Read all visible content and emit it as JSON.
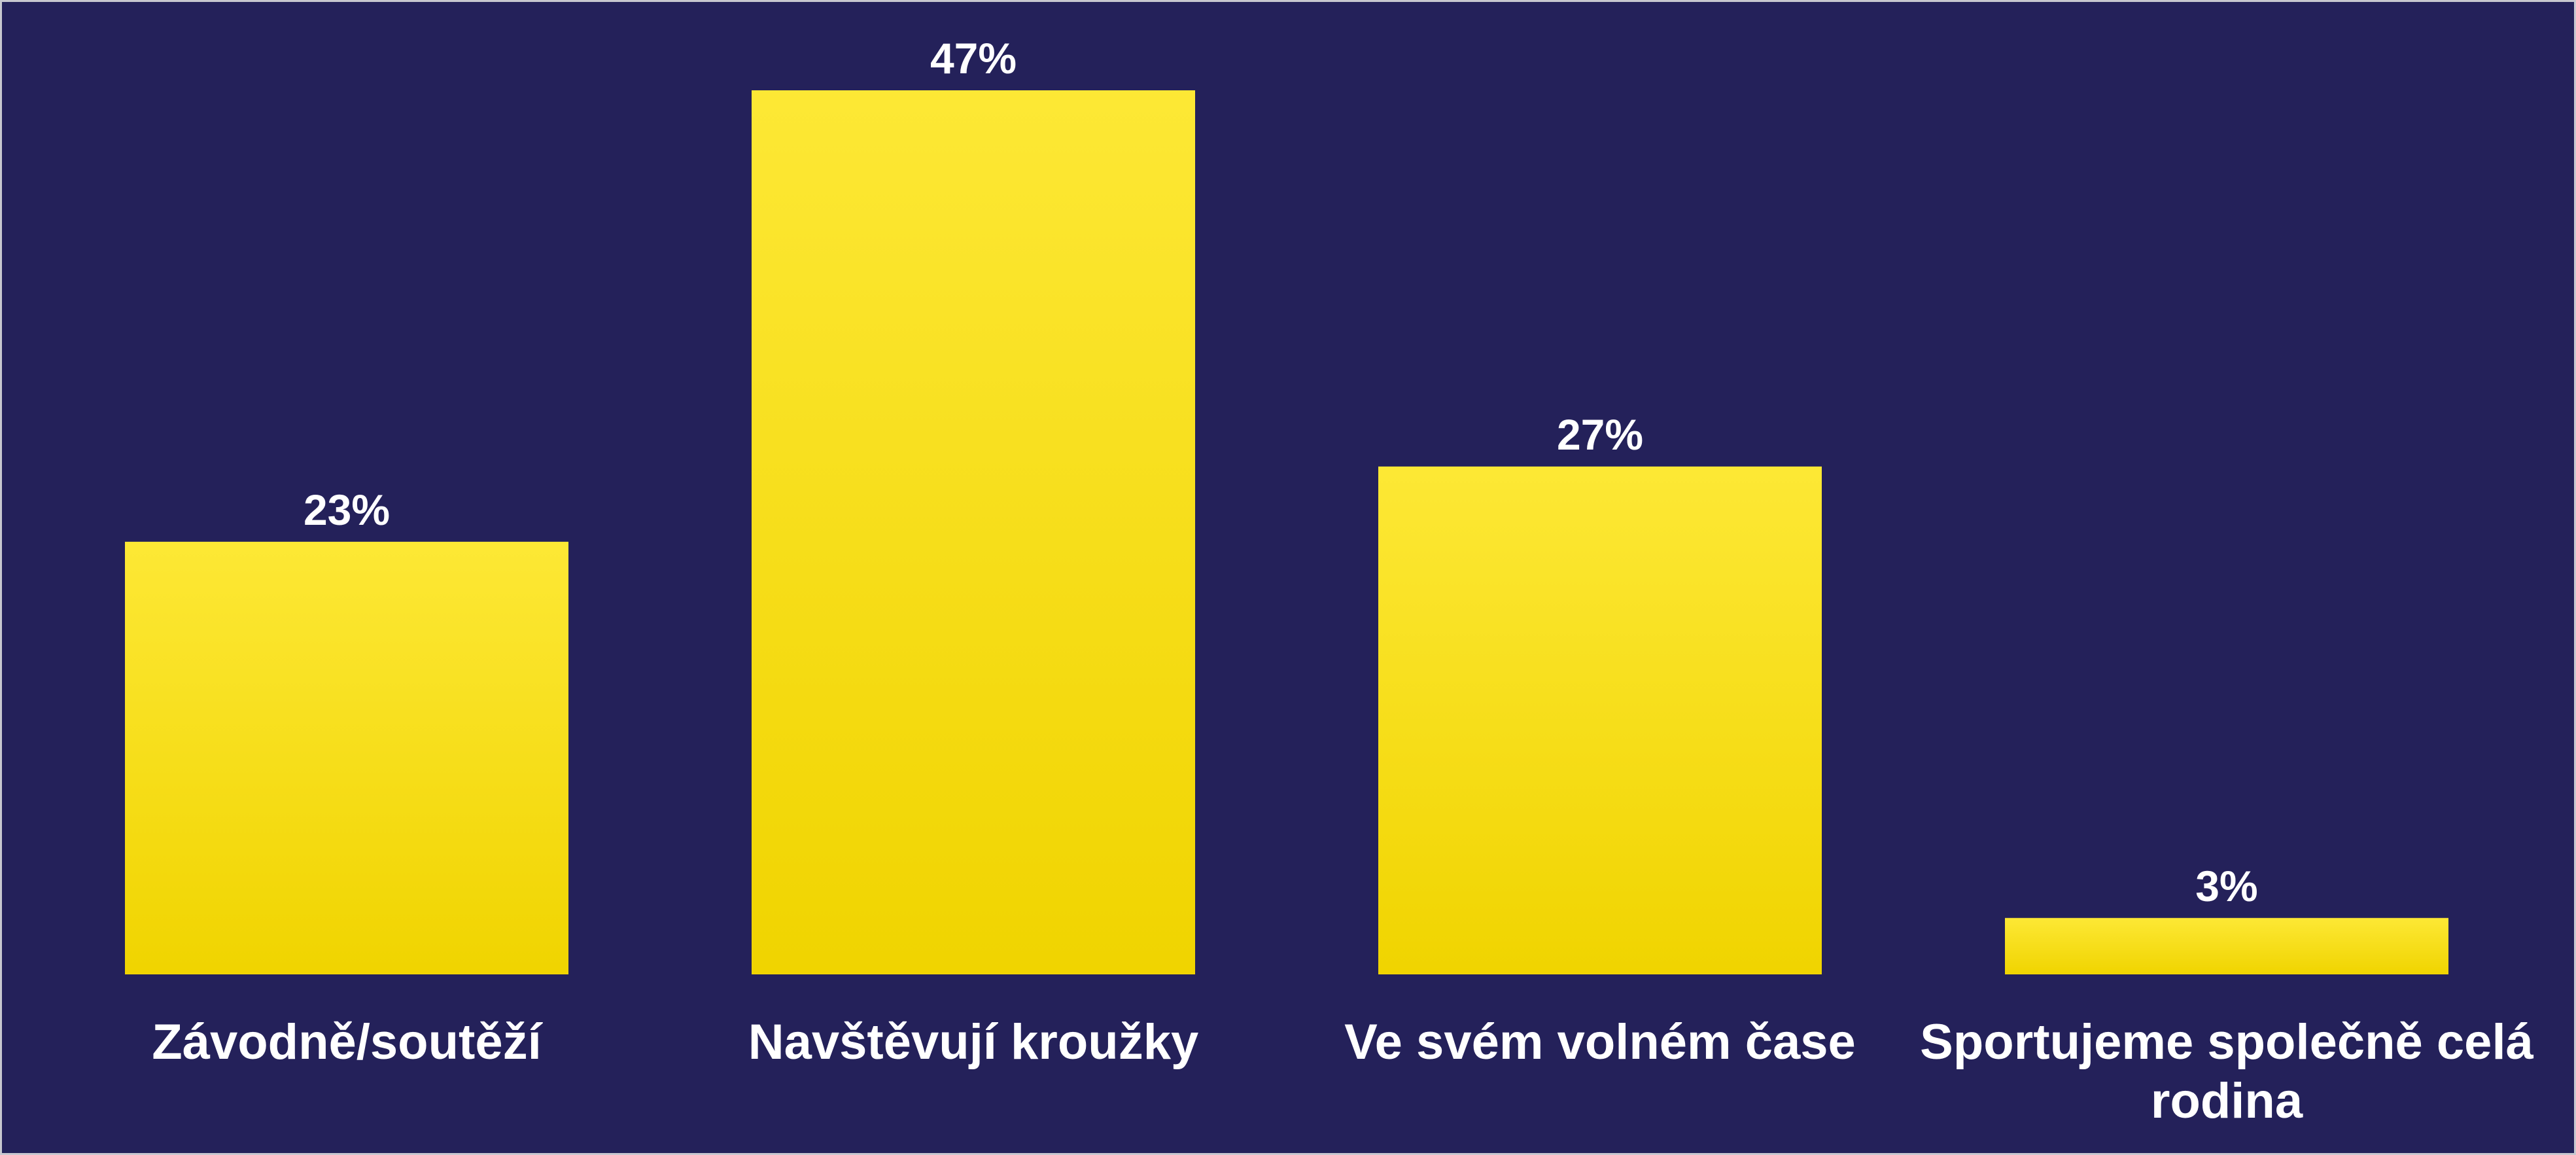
{
  "chart_data": {
    "type": "bar",
    "categories": [
      "Závodně/soutěží",
      "Navštěvují kroužky",
      "Ve svém volném čase",
      "Sportujeme společně celá rodina"
    ],
    "values": [
      23,
      47,
      27,
      3
    ],
    "value_labels": [
      "23%",
      "47%",
      "27%",
      "3%"
    ],
    "color": "#f5da10",
    "background": "#24215a"
  }
}
